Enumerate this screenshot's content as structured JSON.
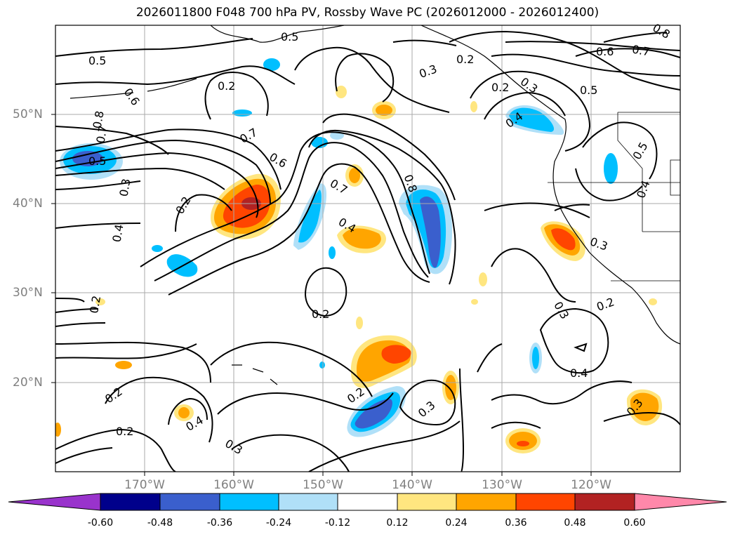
{
  "title": "2026011800 F048 700 hPa PV, Rossby Wave PC (2026012000 - 2026012400)",
  "lat_labels": [
    "50°N",
    "40°N",
    "30°N",
    "20°N"
  ],
  "lon_labels": [
    "170°W",
    "160°W",
    "150°W",
    "140°W",
    "130°W",
    "120°W"
  ],
  "colorbar": {
    "ticks": [
      "-0.60",
      "-0.48",
      "-0.36",
      "-0.24",
      "-0.12",
      "0.12",
      "0.24",
      "0.36",
      "0.48",
      "0.60"
    ],
    "colors": [
      "#9933cc",
      "#00008b",
      "#3a5fcd",
      "#00bfff",
      "#b0e0f8",
      "#ffffff",
      "#ffe680",
      "#ffa500",
      "#ff4500",
      "#b22222",
      "#ff88aa"
    ]
  },
  "contour_labels": [
    "0.5",
    "0.6",
    "0.8",
    "0.7",
    "0.5",
    "0.3",
    "0.4",
    "0.2",
    "0.2",
    "0.2",
    "0.4",
    "0.3",
    "0.2",
    "0.7",
    "0.6",
    "0.7",
    "0.8",
    "0.4",
    "0.3",
    "0.2",
    "0.3",
    "0.2",
    "0.3",
    "0.4",
    "0.5",
    "0.6",
    "0.7",
    "0.8",
    "0.3",
    "0.5",
    "0.4",
    "0.3",
    "0.2",
    "0.3",
    "0.4",
    "0.2",
    "0.2",
    "0.5",
    "0.2"
  ],
  "chart_data": {
    "type": "map",
    "region": "North Pacific",
    "lat_range": [
      10,
      60
    ],
    "lon_range": [
      -180,
      -110
    ],
    "grid": true,
    "contour_field": "700 hPa PV",
    "contour_levels": [
      0.2,
      0.3,
      0.4,
      0.5,
      0.6,
      0.7,
      0.8
    ],
    "shaded_field": "Rossby Wave PC",
    "shading_levels": [
      -0.6,
      -0.48,
      -0.36,
      -0.24,
      -0.12,
      0.12,
      0.24,
      0.36,
      0.48,
      0.6
    ]
  }
}
